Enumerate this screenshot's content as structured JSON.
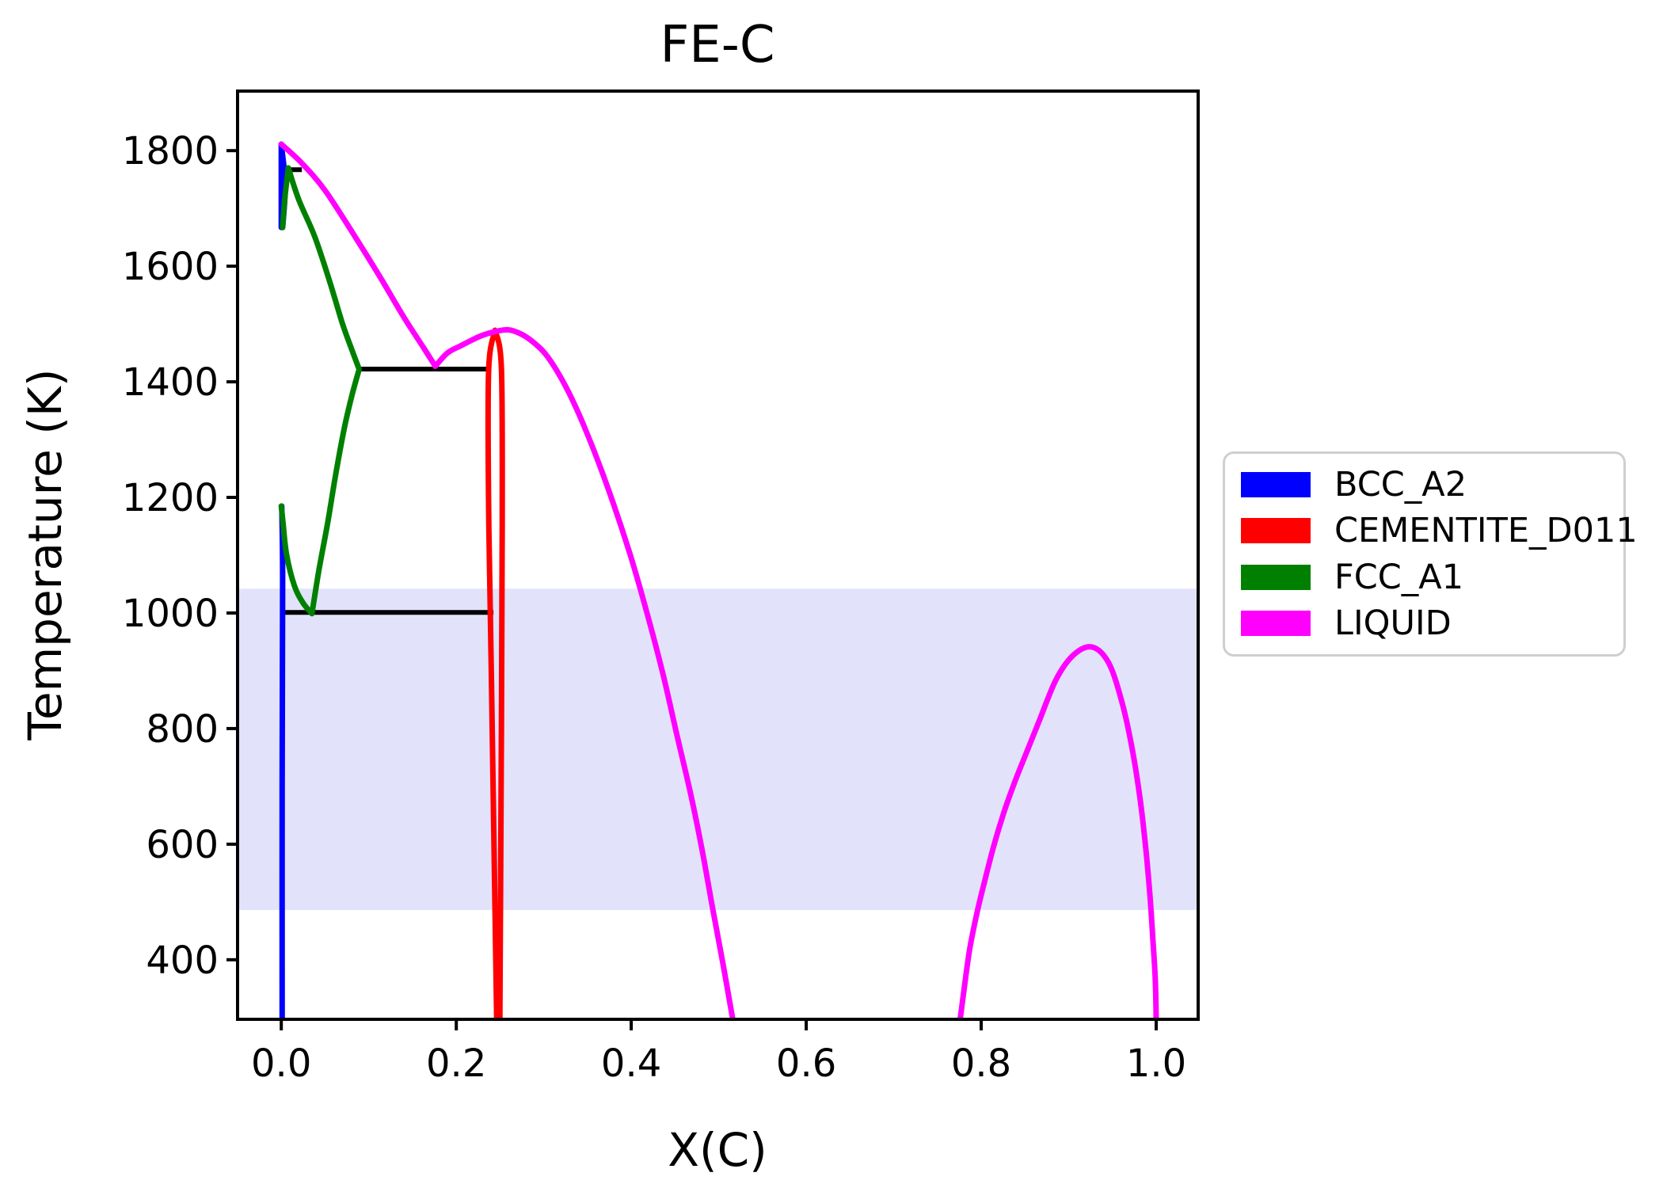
{
  "chart_data": {
    "type": "line",
    "title": "FE-C",
    "xlabel": "X(C)",
    "ylabel": "Temperature (K)",
    "xlim": [
      -0.05,
      1.048
    ],
    "ylim": [
      297,
      1903
    ],
    "grid": false,
    "legend_position": "outside-right",
    "x_ticks": [
      0.0,
      0.2,
      0.4,
      0.6,
      0.8,
      1.0
    ],
    "x_tick_labels": [
      "0.0",
      "0.2",
      "0.4",
      "0.6",
      "0.8",
      "1.0"
    ],
    "y_ticks": [
      400,
      600,
      800,
      1000,
      1200,
      1400,
      1600,
      1800
    ],
    "y_tick_labels": [
      "400",
      "600",
      "800",
      "1000",
      "1200",
      "1400",
      "1600",
      "1800"
    ],
    "band": {
      "name": "temperature-highlight-band",
      "t_min": 486,
      "t_max": 1042,
      "color": "#E2E2FB"
    },
    "invariant_lines": {
      "color": "#000000",
      "segments": [
        {
          "name": "peritectic",
          "T": 1767,
          "x": [
            0.009,
            0.0235
          ]
        },
        {
          "name": "eutectic",
          "T": 1422,
          "x": [
            0.0887,
            0.238
          ]
        },
        {
          "name": "eutectoid",
          "T": 1001,
          "x": [
            0.0036,
            0.2425
          ]
        }
      ]
    },
    "series": [
      {
        "name": "BCC_A2",
        "color": "#0000FF",
        "paths": [
          [
            [
              0.0,
              1667
            ],
            [
              0.0,
              1811
            ]
          ],
          [
            [
              0.0,
              1811
            ],
            [
              0.0045,
              1741
            ],
            [
              0.0015,
              1667
            ]
          ],
          [
            [
              0.0005,
              1185
            ],
            [
              0.0015,
              1060
            ],
            [
              0.001,
              700
            ],
            [
              0.001,
              297
            ]
          ]
        ]
      },
      {
        "name": "CEMENTITE_D011",
        "color": "#FF0000",
        "paths": [
          [
            [
              0.2443,
              1489
            ],
            [
              0.237,
              1422
            ],
            [
              0.2369,
              1200
            ],
            [
              0.24,
              900
            ],
            [
              0.2462,
              297
            ]
          ],
          [
            [
              0.2443,
              1489
            ],
            [
              0.2516,
              1422
            ],
            [
              0.2525,
              1150
            ],
            [
              0.2516,
              800
            ],
            [
              0.2498,
              297
            ]
          ]
        ]
      },
      {
        "name": "FCC_A1",
        "color": "#008000",
        "paths": [
          [
            [
              0.0015,
              1667
            ],
            [
              0.004,
              1718
            ],
            [
              0.008,
              1770
            ]
          ],
          [
            [
              0.008,
              1770
            ],
            [
              0.02,
              1715
            ],
            [
              0.038,
              1652
            ],
            [
              0.055,
              1575
            ],
            [
              0.07,
              1500
            ],
            [
              0.08,
              1458
            ],
            [
              0.0887,
              1423
            ]
          ],
          [
            [
              0.0,
              1185
            ],
            [
              0.002,
              1156
            ],
            [
              0.006,
              1101
            ],
            [
              0.015,
              1047
            ],
            [
              0.025,
              1017
            ],
            [
              0.035,
              999
            ]
          ],
          [
            [
              0.035,
              999
            ],
            [
              0.043,
              1074
            ],
            [
              0.053,
              1156
            ],
            [
              0.062,
              1238
            ],
            [
              0.072,
              1320
            ],
            [
              0.081,
              1378
            ],
            [
              0.0887,
              1420
            ]
          ]
        ]
      },
      {
        "name": "LIQUID",
        "color": "#FF00FF",
        "paths": [
          [
            [
              0.0,
              1811
            ],
            [
              0.023,
              1779
            ],
            [
              0.05,
              1731
            ],
            [
              0.084,
              1652
            ],
            [
              0.113,
              1581
            ],
            [
              0.14,
              1512
            ],
            [
              0.163,
              1458
            ],
            [
              0.176,
              1427
            ]
          ],
          [
            [
              0.176,
              1427
            ],
            [
              0.19,
              1450
            ],
            [
              0.206,
              1463
            ],
            [
              0.226,
              1478
            ],
            [
              0.242,
              1486
            ],
            [
              0.259,
              1490
            ],
            [
              0.275,
              1482
            ],
            [
              0.29,
              1466
            ],
            [
              0.305,
              1442
            ],
            [
              0.325,
              1392
            ],
            [
              0.345,
              1327
            ],
            [
              0.37,
              1230
            ],
            [
              0.398,
              1105
            ],
            [
              0.418,
              1000
            ],
            [
              0.436,
              896
            ],
            [
              0.452,
              790
            ],
            [
              0.468,
              686
            ],
            [
              0.481,
              590
            ],
            [
              0.493,
              489
            ],
            [
              0.505,
              392
            ],
            [
              0.516,
              297
            ]
          ],
          [
            [
              0.776,
              297
            ],
            [
              0.781,
              355
            ],
            [
              0.787,
              420
            ],
            [
              0.795,
              480
            ],
            [
              0.803,
              530
            ],
            [
              0.814,
              595
            ],
            [
              0.826,
              655
            ],
            [
              0.838,
              706
            ],
            [
              0.85,
              752
            ],
            [
              0.866,
              812
            ],
            [
              0.886,
              886
            ],
            [
              0.906,
              928
            ],
            [
              0.927,
              941
            ],
            [
              0.946,
              913
            ],
            [
              0.961,
              845
            ],
            [
              0.972,
              770
            ],
            [
              0.981,
              685
            ],
            [
              0.988,
              595
            ],
            [
              0.993,
              510
            ],
            [
              0.996,
              440
            ],
            [
              0.999,
              365
            ],
            [
              1.0,
              297
            ]
          ]
        ]
      }
    ]
  },
  "legend": {
    "items": [
      {
        "label": "BCC_A2",
        "color": "#0000FF"
      },
      {
        "label": "CEMENTITE_D011",
        "color": "#FF0000"
      },
      {
        "label": "FCC_A1",
        "color": "#008000"
      },
      {
        "label": "LIQUID",
        "color": "#FF00FF"
      }
    ]
  }
}
